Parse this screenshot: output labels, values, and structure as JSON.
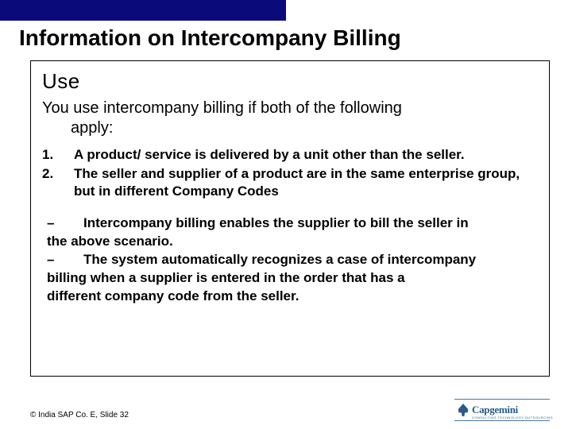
{
  "colors": {
    "topbar": "#0a0a7a",
    "text": "#000000",
    "logo": "#2a5a8a",
    "background": "#ffffff"
  },
  "slide": {
    "title": "Information on Intercompany Billing",
    "use_heading": "Use",
    "intro_line1": "You use intercompany billing if both of the following",
    "intro_line2": "apply:",
    "numbered": [
      {
        "marker": "1.",
        "text": "A product/ service is delivered by a unit other than the seller."
      },
      {
        "marker": "2.",
        "text": "The seller and supplier of a product are in the same enterprise group, but in different  Company Codes"
      }
    ],
    "dashes": [
      {
        "marker": "–",
        "text": "Intercompany billing enables the supplier to bill the seller in the above scenario."
      },
      {
        "marker": "–",
        "text": "The system automatically recognizes a case of intercompany billing when a supplier is entered in the order that has a different company code from the seller."
      }
    ]
  },
  "footer": {
    "text": "© India SAP Co. E, Slide 32"
  },
  "logo": {
    "name": "Capgemini",
    "tagline": "CONSULTING.TECHNOLOGY.OUTSOURCING"
  }
}
